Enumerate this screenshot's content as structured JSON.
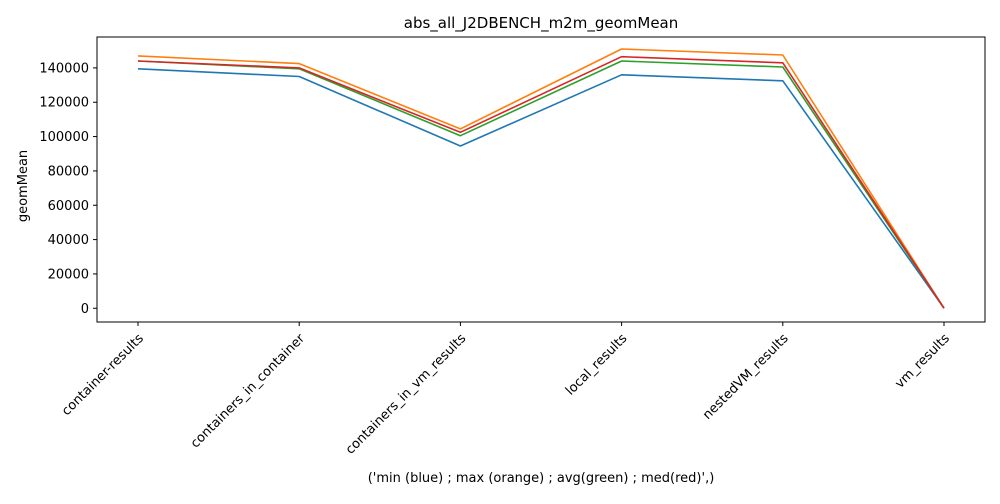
{
  "chart_data": {
    "type": "line",
    "title": "abs_all_J2DBENCH_m2m_geomMean",
    "xlabel": "('min (blue) ; max (orange) ; avg(green) ; med(red)',)",
    "ylabel": "geomMean",
    "categories": [
      "container-results",
      "containers_in_container",
      "containers_in_vm_results",
      "local_results",
      "nestedVM_results",
      "vm_results"
    ],
    "ylim": [
      -8000,
      158000
    ],
    "yticks": [
      0,
      20000,
      40000,
      60000,
      80000,
      100000,
      120000,
      140000
    ],
    "grid": false,
    "series": [
      {
        "color": "#1f77b4",
        "values": [
          139500,
          135000,
          94500,
          136000,
          132500,
          50
        ]
      },
      {
        "color": "#ff7f0e",
        "values": [
          147000,
          142500,
          104500,
          151000,
          147500,
          60
        ]
      },
      {
        "color": "#2ca02c",
        "values": [
          144000,
          139500,
          100500,
          144000,
          140500,
          55
        ]
      },
      {
        "color": "#d62728",
        "values": [
          144000,
          140000,
          102500,
          146500,
          143000,
          55
        ]
      }
    ]
  }
}
